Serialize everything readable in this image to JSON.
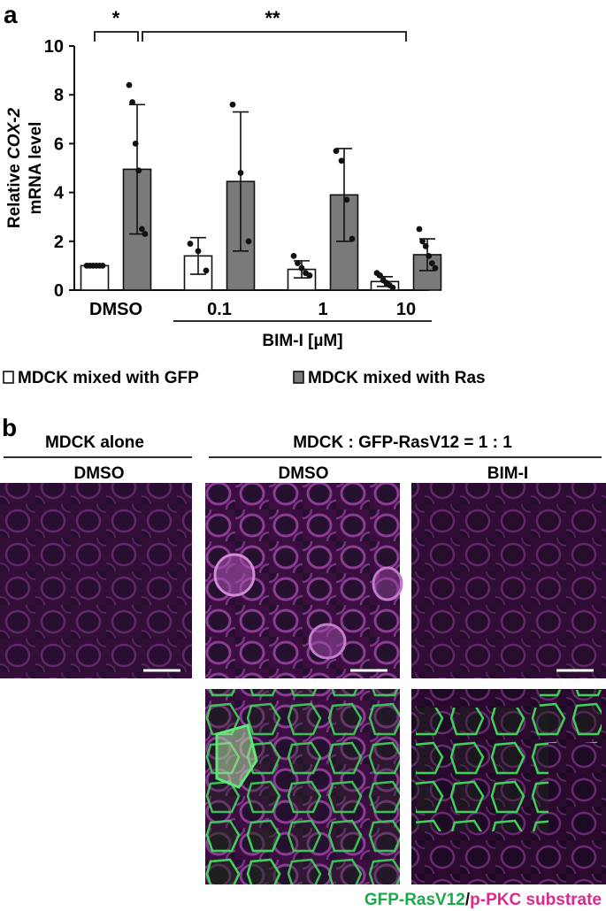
{
  "panel_a": {
    "letter": "a",
    "legend": {
      "gfp_label": "MDCK mixed with GFP",
      "ras_label": "MDCK mixed with Ras",
      "gfp_color": "#ffffff",
      "ras_color": "#7a7a7a"
    },
    "significance": [
      {
        "label": "*",
        "from": "DMSO-GFP",
        "to": "DMSO-Ras"
      },
      {
        "label": "**",
        "from": "DMSO-Ras",
        "to": "10-Ras"
      }
    ],
    "group_label": "BIM-I [µM]"
  },
  "chart_data": {
    "type": "bar",
    "ylabel_prefix": "Relative ",
    "ylabel_italic": "COX-2",
    "ylabel_line2": "mRNA level",
    "ylim": [
      0,
      10
    ],
    "yticks": [
      0,
      2,
      4,
      6,
      8,
      10
    ],
    "categories": [
      "DMSO",
      "0.1",
      "1",
      "10"
    ],
    "series": [
      {
        "name": "MDCK mixed with GFP",
        "values": [
          1.0,
          1.4,
          0.85,
          0.35
        ],
        "errors": [
          0.0,
          0.75,
          0.35,
          0.2
        ],
        "points": [
          [
            1.0,
            1.0,
            1.0,
            1.0,
            1.0,
            1.0
          ],
          [
            1.9,
            1.6,
            0.8
          ],
          [
            1.4,
            1.1,
            0.9,
            0.7,
            0.6
          ],
          [
            0.7,
            0.6,
            0.4,
            0.3,
            0.2,
            0.1
          ]
        ]
      },
      {
        "name": "MDCK mixed with Ras",
        "values": [
          4.95,
          4.45,
          3.9,
          1.45
        ],
        "errors": [
          2.65,
          2.85,
          1.9,
          0.65
        ],
        "points": [
          [
            8.4,
            7.7,
            6.0,
            4.9,
            2.5,
            2.3
          ],
          [
            7.6,
            4.8,
            2.0
          ],
          [
            5.7,
            5.3,
            3.7,
            2.1
          ],
          [
            2.5,
            2.0,
            1.8,
            1.4,
            1.1,
            0.9
          ]
        ]
      }
    ]
  },
  "panel_b": {
    "letter": "b",
    "header_left": "MDCK alone",
    "header_right": "MDCK : GFP-RasV12 = 1 : 1",
    "col1": "DMSO",
    "col2": "DMSO",
    "col3": "BIM-I",
    "caption_green": "GFP-RasV12",
    "caption_slash": "/",
    "caption_magenta": "p-PKC substrate",
    "green_color": "#1aa84a",
    "magenta_color": "#e0278f"
  }
}
